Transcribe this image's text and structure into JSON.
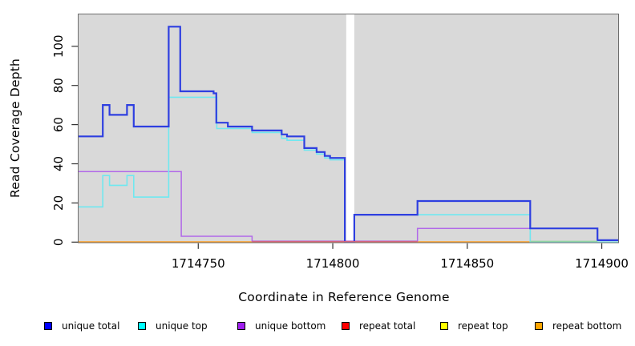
{
  "figure_bg": "#ffffff",
  "chart_data": {
    "type": "line",
    "subtype": "step",
    "title": "",
    "xlabel": "Coordinate in Reference Genome",
    "ylabel": "Read Coverage Depth",
    "x_ticks": [
      1714750,
      1714800,
      1714850,
      1714900
    ],
    "y_ticks": [
      0,
      20,
      40,
      60,
      80,
      100
    ],
    "x_range": [
      1714705.3,
      1714906.3
    ],
    "y_range": [
      0,
      116.4
    ],
    "plot_bg": "#d9d9d9",
    "grid": false,
    "legend_position": "bottom",
    "gap_region": {
      "x_from": 1714805,
      "x_to": 1714808,
      "color": "#ffffff"
    },
    "series": [
      {
        "name": "unique total",
        "color": "#2e3fe0",
        "width": 2.2,
        "points": [
          [
            1714705.3,
            54
          ],
          [
            1714714.5,
            70
          ],
          [
            1714717,
            65
          ],
          [
            1714723.5,
            70
          ],
          [
            1714726,
            59
          ],
          [
            1714739,
            110
          ],
          [
            1714743.3,
            77
          ],
          [
            1714755.7,
            76
          ],
          [
            1714756.7,
            61
          ],
          [
            1714761,
            59
          ],
          [
            1714770,
            57
          ],
          [
            1714781,
            55
          ],
          [
            1714783,
            54
          ],
          [
            1714789.4,
            48
          ],
          [
            1714794,
            46
          ],
          [
            1714797,
            44
          ],
          [
            1714799,
            43
          ],
          [
            1714804.5,
            0
          ],
          [
            1714808,
            14
          ],
          [
            1714831.5,
            21
          ],
          [
            1714873.4,
            7
          ],
          [
            1714898.4,
            1
          ],
          [
            1714906.3,
            1
          ]
        ]
      },
      {
        "name": "unique top",
        "color": "#70e8f0",
        "width": 1.6,
        "points": [
          [
            1714705.3,
            18
          ],
          [
            1714714.5,
            34
          ],
          [
            1714717,
            29
          ],
          [
            1714723.5,
            34
          ],
          [
            1714726,
            23
          ],
          [
            1714739,
            74
          ],
          [
            1714756.9,
            58
          ],
          [
            1714770,
            56
          ],
          [
            1714781,
            53
          ],
          [
            1714783,
            52
          ],
          [
            1714789.4,
            47
          ],
          [
            1714794,
            45
          ],
          [
            1714797,
            43
          ],
          [
            1714799,
            42
          ],
          [
            1714804.5,
            0
          ],
          [
            1714808,
            14
          ],
          [
            1714873.4,
            0
          ],
          [
            1714906.3,
            0
          ]
        ]
      },
      {
        "name": "unique bottom",
        "color": "#b168e9",
        "width": 1.5,
        "points": [
          [
            1714705.3,
            36
          ],
          [
            1714743.7,
            3
          ],
          [
            1714770,
            0.5
          ],
          [
            1714831.5,
            7
          ],
          [
            1714873.4,
            0
          ],
          [
            1714906.3,
            0
          ]
        ]
      },
      {
        "name": "repeat total",
        "color": "#e00000",
        "width": 1.4,
        "points": [
          [
            1714705.3,
            0
          ],
          [
            1714906.3,
            0
          ]
        ]
      },
      {
        "name": "repeat top",
        "color": "#f0e000",
        "width": 1.4,
        "points": [
          [
            1714705.3,
            0
          ],
          [
            1714906.3,
            0
          ]
        ]
      },
      {
        "name": "repeat bottom",
        "color": "#ff9d20",
        "width": 2,
        "points": [
          [
            1714705.3,
            0
          ],
          [
            1714873.4,
            0
          ]
        ]
      }
    ],
    "overlay_segments": [
      {
        "name": "unique-bottom-zero-over-orange",
        "color": "#d4627e",
        "y": 0.3,
        "x_from": 1714770,
        "x_to": 1714831.5,
        "width": 1.5
      },
      {
        "name": "unique-top-zero-over-orange",
        "color": "#90d4a2",
        "y": 0.4,
        "x_from": 1714873.4,
        "x_to": 1714898.4,
        "width": 1.5
      }
    ],
    "legend": [
      {
        "label": "unique total",
        "color": "#0000ff"
      },
      {
        "label": "unique top",
        "color": "#00ffff"
      },
      {
        "label": "unique bottom",
        "color": "#a020f0"
      },
      {
        "label": "repeat total",
        "color": "#ff0000"
      },
      {
        "label": "repeat top",
        "color": "#ffff00"
      },
      {
        "label": "repeat bottom",
        "color": "#ffa500"
      }
    ]
  }
}
